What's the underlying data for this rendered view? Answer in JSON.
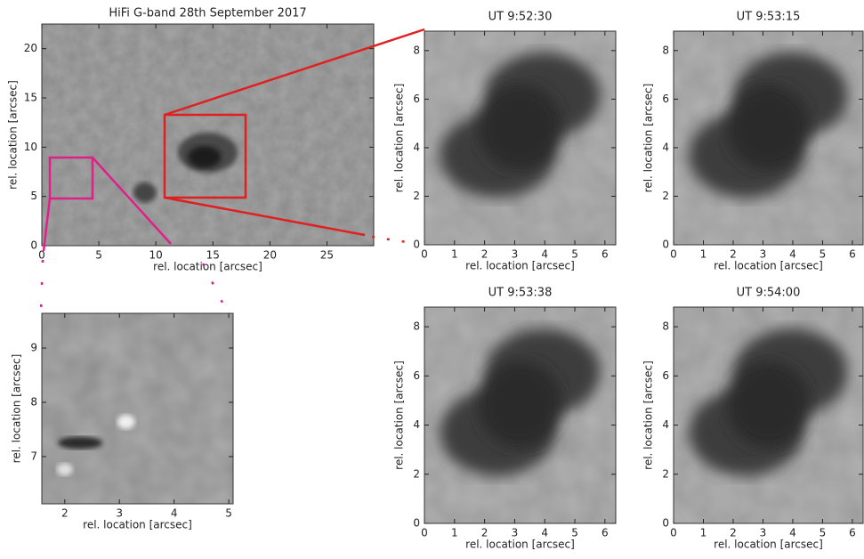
{
  "chart_data": [
    {
      "type": "image",
      "title": "HiFi G-band 28th September 2017",
      "xlabel": "rel. location [arcsec]",
      "ylabel": "rel. location [arcsec]",
      "xlim": [
        0,
        29.1
      ],
      "ylim": [
        0,
        22.5
      ],
      "xticks": [
        0,
        5,
        10,
        15,
        20,
        25
      ],
      "yticks": [
        0,
        5,
        10,
        15,
        20
      ]
    },
    {
      "type": "image",
      "xlabel": "rel. location [arcsec]",
      "ylabel": "rel. location [arcsec]",
      "xlim": [
        1.58,
        5.08
      ],
      "ylim": [
        6.13,
        9.64
      ],
      "xticks": [
        2,
        3,
        4,
        5
      ],
      "yticks": [
        7,
        8,
        9
      ]
    },
    {
      "type": "image",
      "title": "UT 9:52:30",
      "xlabel": "rel. location [arcsec]",
      "ylabel": "rel. location [arcsec]",
      "xlim": [
        0,
        6.36
      ],
      "ylim": [
        0,
        8.8
      ],
      "xticks": [
        0,
        1,
        2,
        3,
        4,
        5,
        6
      ],
      "yticks": [
        0,
        2,
        4,
        6,
        8
      ]
    },
    {
      "type": "image",
      "title": "UT 9:53:15",
      "xlabel": "rel. location [arcsec]",
      "ylabel": "rel. location [arcsec]",
      "xlim": [
        0,
        6.36
      ],
      "ylim": [
        0,
        8.8
      ],
      "xticks": [
        0,
        1,
        2,
        3,
        4,
        5,
        6
      ],
      "yticks": [
        0,
        2,
        4,
        6,
        8
      ]
    },
    {
      "type": "image",
      "title": "UT 9:53:38",
      "xlabel": "rel. location [arcsec]",
      "ylabel": "rel. location [arcsec]",
      "xlim": [
        0,
        6.36
      ],
      "ylim": [
        0,
        8.8
      ],
      "xticks": [
        0,
        1,
        2,
        3,
        4,
        5,
        6
      ],
      "yticks": [
        0,
        2,
        4,
        6,
        8
      ]
    },
    {
      "type": "image",
      "title": "UT 9:54:00",
      "xlabel": "rel. location [arcsec]",
      "ylabel": "rel. location [arcsec]",
      "xlim": [
        0,
        6.36
      ],
      "ylim": [
        0,
        8.8
      ],
      "xticks": [
        0,
        1,
        2,
        3,
        4,
        5,
        6
      ],
      "yticks": [
        0,
        2,
        4,
        6,
        8
      ]
    }
  ]
}
